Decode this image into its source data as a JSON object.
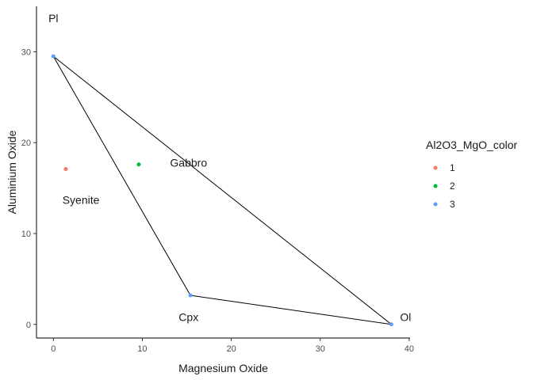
{
  "chart_data": {
    "type": "scatter",
    "xlabel": "Magnesium Oxide",
    "ylabel": "Aluminium Oxide",
    "xlim": [
      -1.9,
      40.1
    ],
    "ylim": [
      -1.5,
      35.0
    ],
    "xticks": [
      0,
      10,
      20,
      30,
      40
    ],
    "yticks": [
      0,
      10,
      20,
      30
    ],
    "grid": false,
    "legend": {
      "title": "Al2O3_MgO_color",
      "position": "right",
      "entries": [
        {
          "label": "1",
          "color": "#F8766D"
        },
        {
          "label": "2",
          "color": "#00BA38"
        },
        {
          "label": "3",
          "color": "#619CFF"
        }
      ]
    },
    "points": [
      {
        "x": 0,
        "y": 29.5,
        "group": "3"
      },
      {
        "x": 15.4,
        "y": 3.2,
        "group": "3"
      },
      {
        "x": 38.0,
        "y": 0.0,
        "group": "3"
      },
      {
        "x": 1.4,
        "y": 17.1,
        "group": "1"
      },
      {
        "x": 9.6,
        "y": 17.6,
        "group": "2"
      }
    ],
    "polygon": [
      {
        "x": 0,
        "y": 29.5
      },
      {
        "x": 15.4,
        "y": 3.2
      },
      {
        "x": 38.0,
        "y": 0.0
      },
      {
        "x": 0,
        "y": 29.5
      }
    ],
    "annotations": [
      {
        "text": "Pl",
        "x": 0,
        "y": 33.7
      },
      {
        "text": "Gabbro",
        "x": 15.2,
        "y": 17.8
      },
      {
        "text": "Syenite",
        "x": 3.1,
        "y": 13.7
      },
      {
        "text": "Cpx",
        "x": 15.2,
        "y": 0.8
      },
      {
        "text": "Ol",
        "x": 39.6,
        "y": 0.8
      }
    ]
  }
}
